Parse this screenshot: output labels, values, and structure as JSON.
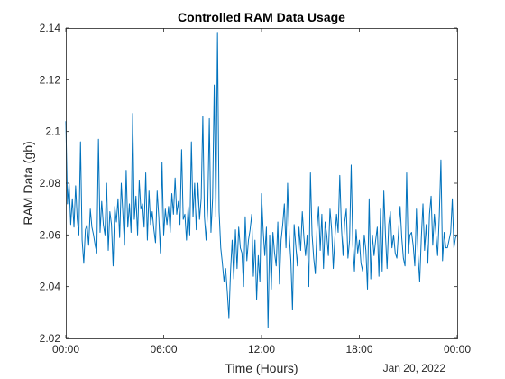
{
  "chart_data": {
    "type": "line",
    "title": "Controlled RAM Data Usage",
    "xlabel": "Time (Hours)",
    "ylabel": "RAM Data (gb)",
    "date_label": "Jan 20, 2022",
    "xlim": [
      0,
      24
    ],
    "ylim": [
      2.02,
      2.14
    ],
    "x_ticks": [
      {
        "value": 0,
        "label": "00:00"
      },
      {
        "value": 6,
        "label": "06:00"
      },
      {
        "value": 12,
        "label": "12:00"
      },
      {
        "value": 18,
        "label": "18:00"
      },
      {
        "value": 24,
        "label": "00:00"
      }
    ],
    "y_ticks": [
      {
        "value": 2.02,
        "label": "2.02"
      },
      {
        "value": 2.04,
        "label": "2.04"
      },
      {
        "value": 2.06,
        "label": "2.06"
      },
      {
        "value": 2.08,
        "label": "2.08"
      },
      {
        "value": 2.1,
        "label": "2.1"
      },
      {
        "value": 2.12,
        "label": "2.12"
      },
      {
        "value": 2.14,
        "label": "2.14"
      }
    ],
    "grid": false,
    "line_color": "#0072BD",
    "series": [
      {
        "x": [
          0.0,
          0.1,
          0.2,
          0.3,
          0.4,
          0.5,
          0.6,
          0.7,
          0.8,
          0.9,
          1.0,
          1.1,
          1.2,
          1.3,
          1.4,
          1.5,
          1.6,
          1.7,
          1.8,
          1.9,
          2.0,
          2.1,
          2.2,
          2.3,
          2.4,
          2.5,
          2.6,
          2.7,
          2.8,
          2.9,
          3.0,
          3.1,
          3.2,
          3.3,
          3.4,
          3.5,
          3.6,
          3.7,
          3.8,
          3.9,
          4.0,
          4.1,
          4.2,
          4.3,
          4.4,
          4.5,
          4.6,
          4.7,
          4.8,
          4.9,
          5.0,
          5.1,
          5.2,
          5.3,
          5.4,
          5.5,
          5.6,
          5.7,
          5.8,
          5.9,
          6.0,
          6.1,
          6.2,
          6.3,
          6.4,
          6.5,
          6.6,
          6.7,
          6.8,
          6.9,
          7.0,
          7.1,
          7.2,
          7.3,
          7.4,
          7.5,
          7.6,
          7.7,
          7.8,
          7.9,
          8.0,
          8.1,
          8.2,
          8.3,
          8.4,
          8.5,
          8.6,
          8.7,
          8.8,
          8.9,
          9.0,
          9.1,
          9.2,
          9.3,
          9.4,
          9.5,
          9.6,
          9.7,
          9.8,
          9.9,
          10.0,
          10.1,
          10.2,
          10.3,
          10.4,
          10.5,
          10.6,
          10.7,
          10.8,
          10.9,
          11.0,
          11.1,
          11.2,
          11.3,
          11.4,
          11.5,
          11.6,
          11.7,
          11.8,
          11.9,
          12.0,
          12.1,
          12.2,
          12.3,
          12.4,
          12.5,
          12.6,
          12.7,
          12.8,
          12.9,
          13.0,
          13.1,
          13.2,
          13.3,
          13.4,
          13.5,
          13.6,
          13.7,
          13.8,
          13.9,
          14.0,
          14.1,
          14.2,
          14.3,
          14.4,
          14.5,
          14.6,
          14.7,
          14.8,
          14.9,
          15.0,
          15.1,
          15.2,
          15.3,
          15.4,
          15.5,
          15.6,
          15.7,
          15.8,
          15.9,
          16.0,
          16.1,
          16.2,
          16.3,
          16.4,
          16.5,
          16.6,
          16.7,
          16.8,
          16.9,
          17.0,
          17.1,
          17.2,
          17.3,
          17.4,
          17.5,
          17.6,
          17.7,
          17.8,
          17.9,
          18.0,
          18.1,
          18.2,
          18.3,
          18.4,
          18.5,
          18.6,
          18.7,
          18.8,
          18.9,
          19.0,
          19.1,
          19.2,
          19.3,
          19.4,
          19.5,
          19.6,
          19.7,
          19.8,
          19.9,
          20.0,
          20.1,
          20.2,
          20.3,
          20.4,
          20.5,
          20.6,
          20.7,
          20.8,
          20.9,
          21.0,
          21.1,
          21.2,
          21.3,
          21.4,
          21.5,
          21.6,
          21.7,
          21.8,
          21.9,
          22.0,
          22.1,
          22.2,
          22.3,
          22.4,
          22.5,
          22.6,
          22.7,
          22.8,
          22.9,
          23.0,
          23.1,
          23.2,
          23.3,
          23.4,
          23.5,
          23.6,
          23.7,
          23.8,
          23.9,
          24.0
        ],
        "y": [
          2.104,
          2.072,
          2.08,
          2.064,
          2.074,
          2.063,
          2.079,
          2.066,
          2.06,
          2.096,
          2.058,
          2.049,
          2.062,
          2.064,
          2.056,
          2.07,
          2.063,
          2.06,
          2.056,
          2.053,
          2.097,
          2.061,
          2.073,
          2.064,
          2.06,
          2.08,
          2.054,
          2.069,
          2.064,
          2.048,
          2.071,
          2.065,
          2.074,
          2.059,
          2.08,
          2.068,
          2.056,
          2.085,
          2.063,
          2.072,
          2.061,
          2.107,
          2.066,
          2.075,
          2.06,
          2.081,
          2.07,
          2.072,
          2.063,
          2.084,
          2.058,
          2.077,
          2.064,
          2.069,
          2.062,
          2.057,
          2.077,
          2.067,
          2.053,
          2.088,
          2.06,
          2.07,
          2.064,
          2.071,
          2.061,
          2.076,
          2.068,
          2.082,
          2.068,
          2.073,
          2.064,
          2.093,
          2.066,
          2.068,
          2.058,
          2.071,
          2.06,
          2.096,
          2.067,
          2.08,
          2.062,
          2.08,
          2.066,
          2.074,
          2.106,
          2.067,
          2.058,
          2.07,
          2.105,
          2.061,
          2.074,
          2.118,
          2.067,
          2.138,
          2.069,
          2.055,
          2.049,
          2.042,
          2.047,
          2.038,
          2.028,
          2.046,
          2.058,
          2.043,
          2.062,
          2.047,
          2.063,
          2.055,
          2.053,
          2.04,
          2.067,
          2.05,
          2.058,
          2.062,
          2.068,
          2.044,
          2.058,
          2.035,
          2.052,
          2.042,
          2.076,
          2.062,
          2.052,
          2.063,
          2.024,
          2.06,
          2.039,
          2.061,
          2.053,
          2.048,
          2.065,
          2.041,
          2.058,
          2.064,
          2.072,
          2.055,
          2.08,
          2.06,
          2.05,
          2.031,
          2.064,
          2.056,
          2.048,
          2.063,
          2.054,
          2.069,
          2.059,
          2.052,
          2.06,
          2.04,
          2.084,
          2.06,
          2.051,
          2.045,
          2.062,
          2.071,
          2.054,
          2.068,
          2.047,
          2.065,
          2.06,
          2.052,
          2.07,
          2.062,
          2.047,
          2.059,
          2.068,
          2.061,
          2.083,
          2.063,
          2.052,
          2.065,
          2.07,
          2.051,
          2.058,
          2.087,
          2.056,
          2.046,
          2.062,
          2.053,
          2.058,
          2.049,
          2.046,
          2.06,
          2.054,
          2.039,
          2.074,
          2.043,
          2.06,
          2.052,
          2.058,
          2.063,
          2.044,
          2.07,
          2.046,
          2.077,
          2.06,
          2.047,
          2.064,
          2.069,
          2.055,
          2.06,
          2.053,
          2.051,
          2.061,
          2.071,
          2.059,
          2.051,
          2.048,
          2.084,
          2.053,
          2.06,
          2.061,
          2.056,
          2.048,
          2.07,
          2.052,
          2.042,
          2.059,
          2.072,
          2.054,
          2.064,
          2.049,
          2.068,
          2.075,
          2.056,
          2.068,
          2.06,
          2.052,
          2.067,
          2.089,
          2.05,
          2.061,
          2.055,
          2.055,
          2.058,
          2.061,
          2.074,
          2.055,
          2.059,
          2.06
        ]
      }
    ]
  }
}
